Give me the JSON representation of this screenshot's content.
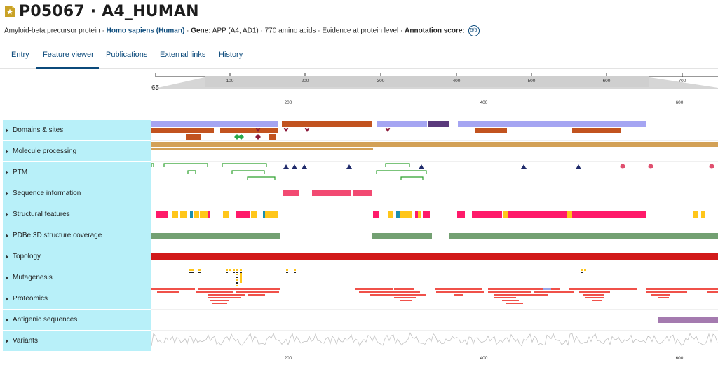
{
  "header": {
    "accession": "P05067 · A4_HUMAN",
    "protein_name": "Amyloid-beta precursor protein",
    "sep1": " · ",
    "organism": "Homo sapiens (Human)",
    "sep2": " · ",
    "gene_label": "Gene:",
    "gene_value": " APP (A4, AD1) · 770 amino acids · Evidence at protein level · ",
    "score_label": "Annotation score:",
    "score_value": "5/5"
  },
  "tabs": [
    {
      "label": "Entry"
    },
    {
      "label": "Feature viewer"
    },
    {
      "label": "Publications"
    },
    {
      "label": "External links"
    },
    {
      "label": "History"
    }
  ],
  "active_tab": "Feature viewer",
  "ruler": {
    "start_label": "65",
    "overview_ticks": [
      "100",
      "200",
      "300",
      "400",
      "500",
      "600",
      "700"
    ],
    "zoom_ticks": [
      "200",
      "400",
      "600"
    ]
  },
  "tracks": [
    {
      "label": "Domains & sites"
    },
    {
      "label": "Molecule processing"
    },
    {
      "label": "PTM"
    },
    {
      "label": "Sequence information"
    },
    {
      "label": "Structural features"
    },
    {
      "label": "PDBe 3D structure coverage"
    },
    {
      "label": "Topology"
    },
    {
      "label": "Mutagenesis"
    },
    {
      "label": "Proteomics"
    },
    {
      "label": "Antigenic sequences"
    },
    {
      "label": "Variants"
    }
  ],
  "colors": {
    "accent": "#0b4a7b",
    "track_label_bg": "#b8f0f9",
    "domain_lilac": "#a5a5f2",
    "domain_orange": "#c2531f",
    "domain_purple": "#5a3a7c",
    "site_red": "#8b1a3a",
    "site_green": "#2aa84a",
    "processing": "#d3a157",
    "ptm_green": "#2ca02c",
    "ptm_navy": "#1f2a6b",
    "ptm_pink": "#e0506f",
    "seqinfo": "#f24a72",
    "helix": "#ff1a6a",
    "strand": "#ffc61a",
    "turn": "#1a8fb0",
    "pdbe": "#73a072",
    "topology": "#d11a1a",
    "proteomics": "#f0514a",
    "antigenic": "#a47aaf",
    "variants": "#bbbbbb"
  }
}
